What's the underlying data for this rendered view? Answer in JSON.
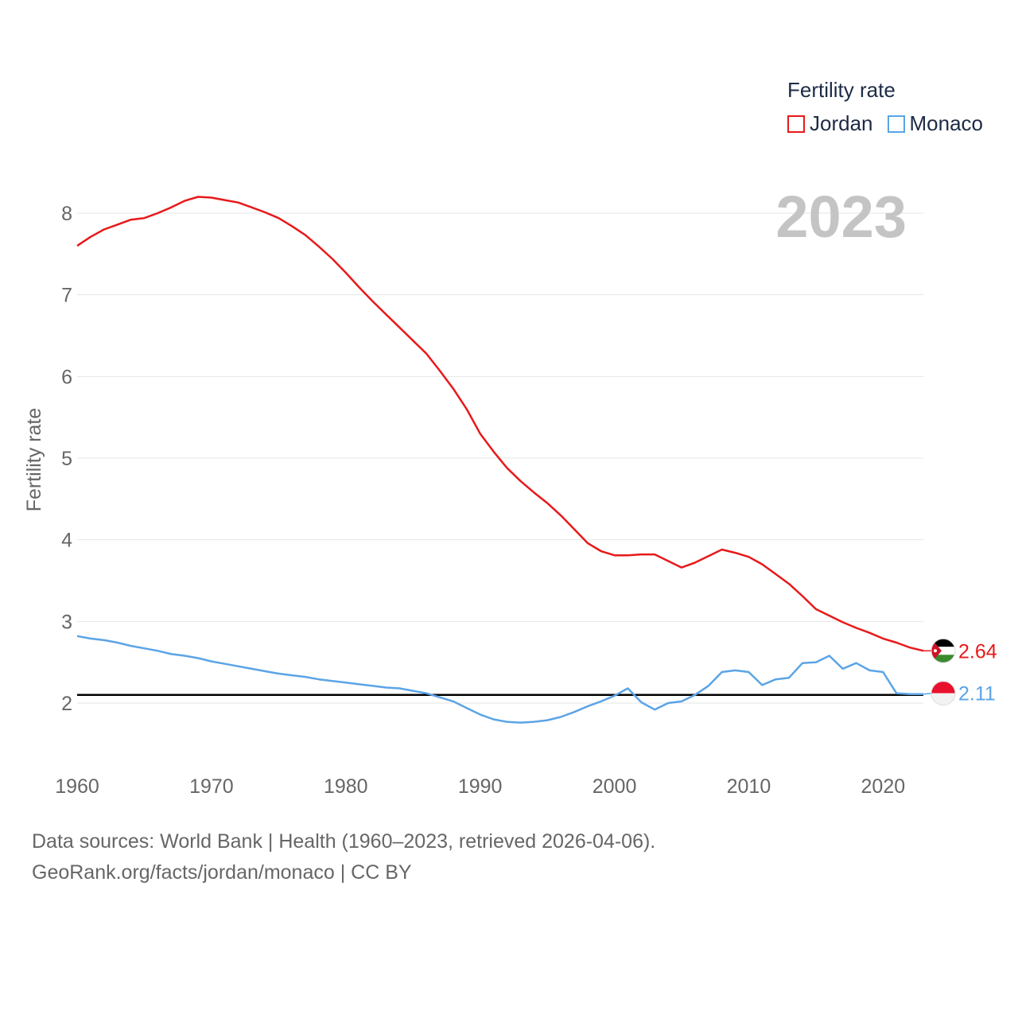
{
  "chart_data": {
    "type": "line",
    "year_watermark": "2023",
    "ylabel": "Fertility rate",
    "xlabel": "",
    "xlim": [
      1960,
      2023
    ],
    "ylim": [
      1.5,
      8.6
    ],
    "yticks": [
      2,
      3,
      4,
      5,
      6,
      7,
      8
    ],
    "xticks": [
      1960,
      1970,
      1980,
      1990,
      2000,
      2010,
      2020
    ],
    "reference_line": 2.1,
    "legend": {
      "title": "Fertility rate",
      "placement": "top-right"
    },
    "x": [
      1960,
      1961,
      1962,
      1963,
      1964,
      1965,
      1966,
      1967,
      1968,
      1969,
      1970,
      1971,
      1972,
      1973,
      1974,
      1975,
      1976,
      1977,
      1978,
      1979,
      1980,
      1981,
      1982,
      1983,
      1984,
      1985,
      1986,
      1987,
      1988,
      1989,
      1990,
      1991,
      1992,
      1993,
      1994,
      1995,
      1996,
      1997,
      1998,
      1999,
      2000,
      2001,
      2002,
      2003,
      2004,
      2005,
      2006,
      2007,
      2008,
      2009,
      2010,
      2011,
      2012,
      2013,
      2014,
      2015,
      2016,
      2017,
      2018,
      2019,
      2020,
      2021,
      2022,
      2023
    ],
    "series": [
      {
        "name": "Jordan",
        "color": "#e8191a",
        "end_label": "2.64",
        "flag": "jordan-flag-icon",
        "values": [
          7.6,
          7.71,
          7.8,
          7.86,
          7.92,
          7.94,
          8.0,
          8.07,
          8.15,
          8.2,
          8.19,
          8.16,
          8.13,
          8.07,
          8.01,
          7.94,
          7.84,
          7.73,
          7.59,
          7.44,
          7.27,
          7.09,
          6.92,
          6.76,
          6.6,
          6.44,
          6.28,
          6.07,
          5.85,
          5.6,
          5.3,
          5.08,
          4.88,
          4.72,
          4.58,
          4.45,
          4.3,
          4.13,
          3.96,
          3.86,
          3.81,
          3.81,
          3.82,
          3.82,
          3.74,
          3.66,
          3.72,
          3.8,
          3.88,
          3.84,
          3.79,
          3.7,
          3.58,
          3.46,
          3.31,
          3.15,
          3.07,
          2.99,
          2.92,
          2.86,
          2.79,
          2.74,
          2.68,
          2.64
        ]
      },
      {
        "name": "Monaco",
        "color": "#5ba4e6",
        "end_label": "2.11",
        "flag": "monaco-flag-icon",
        "values": [
          2.82,
          2.79,
          2.77,
          2.74,
          2.7,
          2.67,
          2.64,
          2.6,
          2.58,
          2.55,
          2.51,
          2.48,
          2.45,
          2.42,
          2.39,
          2.36,
          2.34,
          2.32,
          2.29,
          2.27,
          2.25,
          2.23,
          2.21,
          2.19,
          2.18,
          2.15,
          2.12,
          2.07,
          2.02,
          1.94,
          1.86,
          1.8,
          1.77,
          1.76,
          1.77,
          1.79,
          1.83,
          1.89,
          1.96,
          2.02,
          2.09,
          2.18,
          2.01,
          1.92,
          2.0,
          2.02,
          2.1,
          2.21,
          2.38,
          2.4,
          2.38,
          2.22,
          2.29,
          2.31,
          2.49,
          2.5,
          2.58,
          2.42,
          2.49,
          2.4,
          2.38,
          2.12,
          2.11,
          2.11
        ]
      }
    ]
  },
  "footer": {
    "line1": "Data sources: World Bank | Health (1960–2023, retrieved 2026-04-06).",
    "line2": "GeoRank.org/facts/jordan/monaco | CC BY"
  }
}
